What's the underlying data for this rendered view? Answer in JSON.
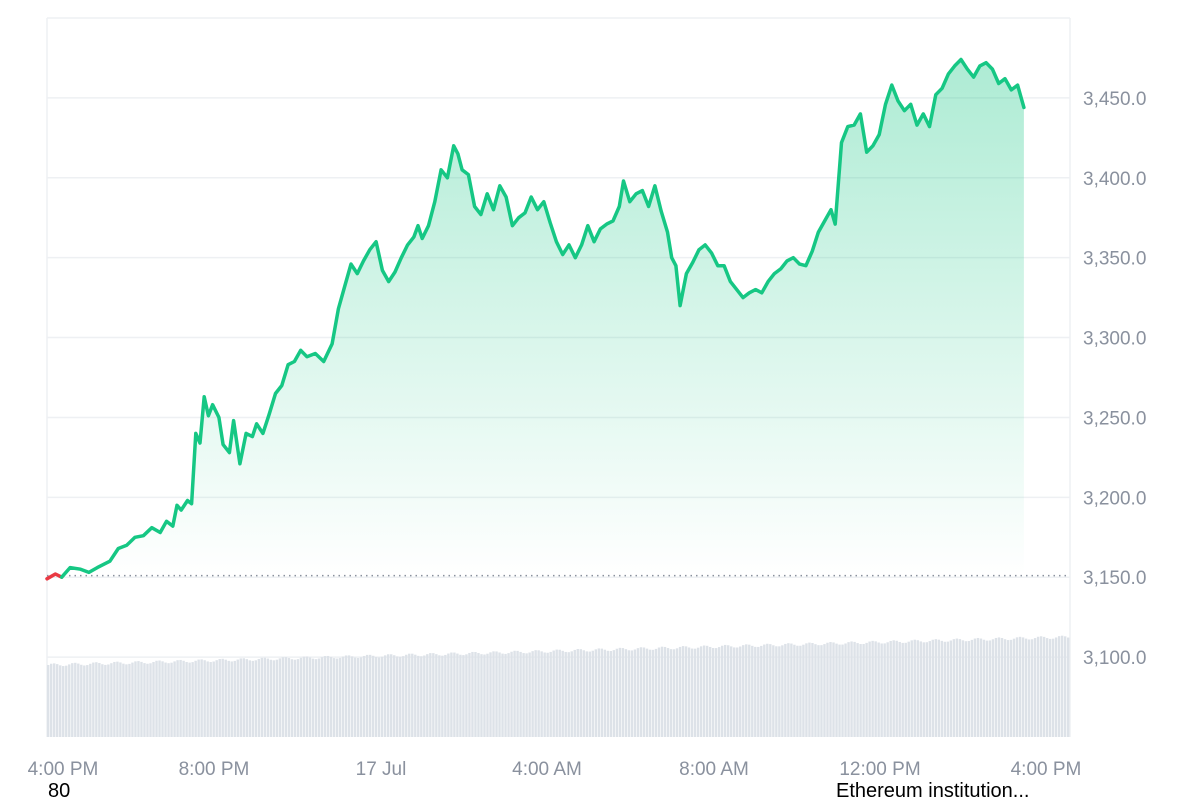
{
  "colors": {
    "line_up": "#16c784",
    "line_down": "#ea3943",
    "fill_up": "#16c784",
    "volume": "#dde2e8",
    "grid": "#eef0f3",
    "axis_text": "#8a919e",
    "baseline": "#8a919e"
  },
  "chart_data": {
    "type": "area",
    "title": "",
    "xlabel": "",
    "ylabel": "",
    "ylim": [
      3050,
      3500
    ],
    "x_tick_labels": [
      "4:00 PM",
      "8:00 PM",
      "17 Jul",
      "4:00 AM",
      "8:00 AM",
      "12:00 PM",
      "4:00 PM"
    ],
    "y_tick_labels": [
      "3,100.0",
      "3,150.0",
      "3,200.0",
      "3,250.0",
      "3,300.0",
      "3,350.0",
      "3,400.0",
      "3,450.0"
    ],
    "y_tick_values": [
      3100,
      3150,
      3200,
      3250,
      3300,
      3350,
      3400,
      3450
    ],
    "baseline_value": 3151,
    "grid": true,
    "x_start_label": "4:00 PM",
    "x_end_label": "4:00 PM",
    "x_span_hours": 24.4,
    "series": [
      {
        "values": [
          [
            0.0,
            3149
          ],
          [
            0.2,
            3152
          ],
          [
            0.35,
            3150
          ],
          [
            0.55,
            3156
          ],
          [
            0.8,
            3155
          ],
          [
            1.0,
            3153
          ],
          [
            1.2,
            3156
          ],
          [
            1.5,
            3160
          ],
          [
            1.7,
            3168
          ],
          [
            1.9,
            3170
          ],
          [
            2.1,
            3175
          ],
          [
            2.3,
            3176
          ],
          [
            2.5,
            3181
          ],
          [
            2.7,
            3178
          ],
          [
            2.85,
            3185
          ],
          [
            3.0,
            3182
          ],
          [
            3.1,
            3195
          ],
          [
            3.2,
            3192
          ],
          [
            3.35,
            3198
          ],
          [
            3.45,
            3196
          ],
          [
            3.55,
            3240
          ],
          [
            3.65,
            3234
          ],
          [
            3.75,
            3263
          ],
          [
            3.85,
            3251
          ],
          [
            3.95,
            3258
          ],
          [
            4.1,
            3250
          ],
          [
            4.2,
            3233
          ],
          [
            4.35,
            3228
          ],
          [
            4.45,
            3248
          ],
          [
            4.6,
            3221
          ],
          [
            4.75,
            3240
          ],
          [
            4.9,
            3238
          ],
          [
            5.0,
            3246
          ],
          [
            5.15,
            3240
          ],
          [
            5.3,
            3252
          ],
          [
            5.45,
            3265
          ],
          [
            5.6,
            3270
          ],
          [
            5.75,
            3283
          ],
          [
            5.9,
            3285
          ],
          [
            6.05,
            3292
          ],
          [
            6.2,
            3288
          ],
          [
            6.4,
            3290
          ],
          [
            6.6,
            3285
          ],
          [
            6.8,
            3296
          ],
          [
            6.95,
            3318
          ],
          [
            7.1,
            3332
          ],
          [
            7.25,
            3346
          ],
          [
            7.4,
            3340
          ],
          [
            7.55,
            3348
          ],
          [
            7.7,
            3355
          ],
          [
            7.85,
            3360
          ],
          [
            8.0,
            3342
          ],
          [
            8.15,
            3335
          ],
          [
            8.3,
            3341
          ],
          [
            8.45,
            3350
          ],
          [
            8.6,
            3358
          ],
          [
            8.75,
            3363
          ],
          [
            8.85,
            3370
          ],
          [
            8.95,
            3362
          ],
          [
            9.1,
            3370
          ],
          [
            9.25,
            3385
          ],
          [
            9.4,
            3405
          ],
          [
            9.55,
            3400
          ],
          [
            9.7,
            3420
          ],
          [
            9.8,
            3415
          ],
          [
            9.9,
            3405
          ],
          [
            10.05,
            3402
          ],
          [
            10.2,
            3382
          ],
          [
            10.35,
            3377
          ],
          [
            10.5,
            3390
          ],
          [
            10.65,
            3380
          ],
          [
            10.8,
            3395
          ],
          [
            10.95,
            3388
          ],
          [
            11.1,
            3370
          ],
          [
            11.25,
            3375
          ],
          [
            11.4,
            3378
          ],
          [
            11.55,
            3388
          ],
          [
            11.7,
            3380
          ],
          [
            11.85,
            3385
          ],
          [
            12.0,
            3372
          ],
          [
            12.15,
            3360
          ],
          [
            12.3,
            3352
          ],
          [
            12.45,
            3358
          ],
          [
            12.6,
            3350
          ],
          [
            12.75,
            3358
          ],
          [
            12.9,
            3370
          ],
          [
            13.05,
            3360
          ],
          [
            13.2,
            3368
          ],
          [
            13.35,
            3371
          ],
          [
            13.5,
            3373
          ],
          [
            13.65,
            3382
          ],
          [
            13.75,
            3398
          ],
          [
            13.9,
            3385
          ],
          [
            14.05,
            3390
          ],
          [
            14.2,
            3392
          ],
          [
            14.35,
            3382
          ],
          [
            14.5,
            3395
          ],
          [
            14.65,
            3379
          ],
          [
            14.8,
            3366
          ],
          [
            14.9,
            3350
          ],
          [
            15.0,
            3345
          ],
          [
            15.1,
            3320
          ],
          [
            15.25,
            3340
          ],
          [
            15.4,
            3347
          ],
          [
            15.55,
            3355
          ],
          [
            15.7,
            3358
          ],
          [
            15.85,
            3353
          ],
          [
            16.0,
            3345
          ],
          [
            16.15,
            3345
          ],
          [
            16.3,
            3335
          ],
          [
            16.45,
            3330
          ],
          [
            16.6,
            3325
          ],
          [
            16.75,
            3328
          ],
          [
            16.9,
            3330
          ],
          [
            17.05,
            3328
          ],
          [
            17.2,
            3335
          ],
          [
            17.35,
            3340
          ],
          [
            17.5,
            3343
          ],
          [
            17.65,
            3348
          ],
          [
            17.8,
            3350
          ],
          [
            17.95,
            3346
          ],
          [
            18.1,
            3345
          ],
          [
            18.25,
            3354
          ],
          [
            18.4,
            3366
          ],
          [
            18.55,
            3373
          ],
          [
            18.7,
            3380
          ],
          [
            18.8,
            3371
          ],
          [
            18.95,
            3422
          ],
          [
            19.1,
            3432
          ],
          [
            19.25,
            3433
          ],
          [
            19.4,
            3440
          ],
          [
            19.55,
            3416
          ],
          [
            19.7,
            3420
          ],
          [
            19.85,
            3427
          ],
          [
            20.0,
            3446
          ],
          [
            20.15,
            3458
          ],
          [
            20.3,
            3448
          ],
          [
            20.45,
            3442
          ],
          [
            20.6,
            3446
          ],
          [
            20.75,
            3433
          ],
          [
            20.9,
            3440
          ],
          [
            21.05,
            3432
          ],
          [
            21.2,
            3452
          ],
          [
            21.35,
            3456
          ],
          [
            21.5,
            3465
          ],
          [
            21.65,
            3470
          ],
          [
            21.8,
            3474
          ],
          [
            21.95,
            3468
          ],
          [
            22.1,
            3463
          ],
          [
            22.25,
            3470
          ],
          [
            22.4,
            3472
          ],
          [
            22.55,
            3468
          ],
          [
            22.7,
            3459
          ],
          [
            22.85,
            3462
          ],
          [
            23.0,
            3455
          ],
          [
            23.15,
            3458
          ],
          [
            23.3,
            3444
          ]
        ]
      }
    ]
  },
  "footer": {
    "left_text": "80",
    "right_text": "Ethereum institution..."
  }
}
